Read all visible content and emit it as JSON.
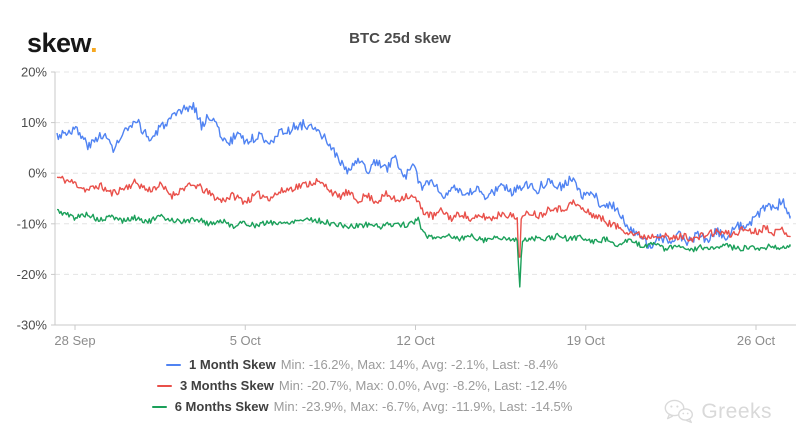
{
  "logo": {
    "text": "skew",
    "dot": ".",
    "dot_color": "#f6a821"
  },
  "title": "BTC 25d skew",
  "watermark": {
    "text": "Greeks",
    "icon": "wechat-icon"
  },
  "chart_data": {
    "type": "line",
    "title": "BTC 25d skew",
    "grid": "horizontal-dashed",
    "legend_position": "bottom",
    "x_axis": {
      "ticks": [
        {
          "day": 0,
          "label": "28 Sep"
        },
        {
          "day": 7,
          "label": "5 Oct"
        },
        {
          "day": 14,
          "label": "12 Oct"
        },
        {
          "day": 21,
          "label": "19 Oct"
        },
        {
          "day": 28,
          "label": "26 Oct"
        }
      ],
      "data_range_days": [
        -0.74,
        29.4
      ]
    },
    "y_axis": {
      "unit": "%",
      "range": [
        -30,
        20
      ],
      "ticks": [
        {
          "value": 20,
          "label": "20%"
        },
        {
          "value": 10,
          "label": "10%"
        },
        {
          "value": 0,
          "label": "0%"
        },
        {
          "value": -10,
          "label": "-10%"
        },
        {
          "value": -20,
          "label": "-20%"
        },
        {
          "value": -30,
          "label": "-30%"
        }
      ]
    },
    "series": [
      {
        "name": "1 Month Skew",
        "color": "#5083f2",
        "stats": {
          "min": -16.2,
          "max": 14,
          "avg": -2.1,
          "last": -8.4
        },
        "legend_stats": "Min: -16.2%, Max: 14%, Avg: -2.1%, Last: -8.4%",
        "noise": 1.0,
        "seed": 3,
        "keypoints": [
          [
            -0.74,
            7.5
          ],
          [
            0,
            8.8
          ],
          [
            0.6,
            5.2
          ],
          [
            1.1,
            8
          ],
          [
            1.6,
            4.8
          ],
          [
            2.1,
            8.5
          ],
          [
            2.6,
            9.8
          ],
          [
            3.1,
            6.5
          ],
          [
            3.6,
            9.5
          ],
          [
            4.1,
            11
          ],
          [
            4.55,
            12.8
          ],
          [
            4.9,
            13.2
          ],
          [
            5.2,
            9.5
          ],
          [
            5.6,
            11.5
          ],
          [
            5.9,
            8.5
          ],
          [
            6.3,
            5.5
          ],
          [
            6.7,
            8.2
          ],
          [
            7.1,
            6
          ],
          [
            7.5,
            7.5
          ],
          [
            8,
            6.5
          ],
          [
            8.5,
            8
          ],
          [
            9,
            9
          ],
          [
            9.5,
            9.8
          ],
          [
            9.9,
            8.2
          ],
          [
            10.4,
            6.3
          ],
          [
            10.8,
            3
          ],
          [
            11.2,
            0
          ],
          [
            11.6,
            2.6
          ],
          [
            12,
            0.5
          ],
          [
            12.4,
            2.2
          ],
          [
            12.8,
            0.8
          ],
          [
            13.2,
            3.2
          ],
          [
            13.5,
            -0.8
          ],
          [
            13.9,
            1
          ],
          [
            14.3,
            -2.8
          ],
          [
            14.7,
            -1.2
          ],
          [
            15.1,
            -4.6
          ],
          [
            15.5,
            -2.4
          ],
          [
            16,
            -5
          ],
          [
            16.5,
            -3
          ],
          [
            17,
            -4.8
          ],
          [
            17.5,
            -2.2
          ],
          [
            18,
            -3.8
          ],
          [
            18.5,
            -1.8
          ],
          [
            19,
            -3.2
          ],
          [
            19.5,
            -1.2
          ],
          [
            20,
            -2.6
          ],
          [
            20.4,
            -1
          ],
          [
            20.9,
            -4.8
          ],
          [
            21.3,
            -3.8
          ],
          [
            21.7,
            -6.8
          ],
          [
            22.1,
            -6
          ],
          [
            22.5,
            -9.2
          ],
          [
            22.9,
            -11
          ],
          [
            23.3,
            -12.8
          ],
          [
            23.7,
            -14.8
          ],
          [
            24,
            -12.5
          ],
          [
            24.4,
            -13.8
          ],
          [
            24.8,
            -12
          ],
          [
            25.2,
            -13.6
          ],
          [
            25.6,
            -12.2
          ],
          [
            26,
            -13.2
          ],
          [
            26.4,
            -11.6
          ],
          [
            26.8,
            -12.4
          ],
          [
            27.2,
            -10.2
          ],
          [
            27.6,
            -11.2
          ],
          [
            28,
            -8.6
          ],
          [
            28.4,
            -6.2
          ],
          [
            28.8,
            -6.8
          ],
          [
            29.1,
            -5.4
          ],
          [
            29.4,
            -8.4
          ]
        ]
      },
      {
        "name": "3 Months Skew",
        "color": "#e9504a",
        "stats": {
          "min": -20.7,
          "max": 0.0,
          "avg": -8.2,
          "last": -12.4
        },
        "legend_stats": "Min: -20.7%, Max: 0.0%, Avg: -8.2%, Last: -12.4%",
        "noise": 0.75,
        "seed": 11,
        "keypoints": [
          [
            -0.74,
            -0.8
          ],
          [
            0,
            -2
          ],
          [
            0.5,
            -3.4
          ],
          [
            1,
            -2.4
          ],
          [
            1.5,
            -4
          ],
          [
            2,
            -3
          ],
          [
            2.5,
            -1.8
          ],
          [
            3,
            -3.4
          ],
          [
            3.5,
            -2.4
          ],
          [
            4,
            -4.4
          ],
          [
            4.5,
            -2.8
          ],
          [
            5,
            -2.4
          ],
          [
            5.5,
            -4
          ],
          [
            6,
            -5.4
          ],
          [
            6.5,
            -4.4
          ],
          [
            7,
            -5.6
          ],
          [
            7.5,
            -4.2
          ],
          [
            8,
            -4.8
          ],
          [
            8.5,
            -3.6
          ],
          [
            9,
            -2.8
          ],
          [
            9.5,
            -2.2
          ],
          [
            9.9,
            -1.6
          ],
          [
            10.4,
            -2.8
          ],
          [
            10.8,
            -4.8
          ],
          [
            11.2,
            -3.8
          ],
          [
            11.6,
            -5.4
          ],
          [
            12,
            -4.4
          ],
          [
            12.4,
            -5.6
          ],
          [
            12.8,
            -4.2
          ],
          [
            13.2,
            -5.4
          ],
          [
            13.6,
            -4.4
          ],
          [
            14,
            -5
          ],
          [
            14.3,
            -7.4
          ],
          [
            14.7,
            -8.6
          ],
          [
            15.1,
            -7.4
          ],
          [
            15.5,
            -9
          ],
          [
            15.9,
            -7.8
          ],
          [
            16.3,
            -9.4
          ],
          [
            16.7,
            -8.4
          ],
          [
            17.1,
            -9
          ],
          [
            17.6,
            -7.8
          ],
          [
            18,
            -8.6
          ],
          [
            18.2,
            -9
          ],
          [
            18.26,
            -20.7
          ],
          [
            18.34,
            -9.2
          ],
          [
            18.7,
            -7.6
          ],
          [
            19.1,
            -8.4
          ],
          [
            19.6,
            -6.6
          ],
          [
            20,
            -7.2
          ],
          [
            20.5,
            -5.8
          ],
          [
            21,
            -7.6
          ],
          [
            21.5,
            -8.6
          ],
          [
            22,
            -10
          ],
          [
            22.5,
            -11
          ],
          [
            23,
            -12
          ],
          [
            23.5,
            -12.6
          ],
          [
            24,
            -12
          ],
          [
            24.5,
            -13
          ],
          [
            25,
            -12.4
          ],
          [
            25.5,
            -13
          ],
          [
            26,
            -12
          ],
          [
            26.5,
            -11.6
          ],
          [
            27,
            -12.2
          ],
          [
            27.5,
            -11
          ],
          [
            28,
            -11.6
          ],
          [
            28.4,
            -10.6
          ],
          [
            28.8,
            -11.8
          ],
          [
            29.1,
            -11
          ],
          [
            29.4,
            -12.4
          ]
        ]
      },
      {
        "name": "6 Months Skew",
        "color": "#1ba05a",
        "stats": {
          "min": -23.9,
          "max": -6.7,
          "avg": -11.9,
          "last": -14.5
        },
        "legend_stats": "Min: -23.9%, Max: -6.7%, Avg: -11.9%, Last: -14.5%",
        "noise": 0.55,
        "seed": 5,
        "keypoints": [
          [
            -0.74,
            -7.4
          ],
          [
            0,
            -8.8
          ],
          [
            0.5,
            -8
          ],
          [
            1,
            -9.4
          ],
          [
            1.5,
            -8.6
          ],
          [
            2,
            -9.4
          ],
          [
            2.5,
            -8.8
          ],
          [
            3,
            -9.6
          ],
          [
            3.5,
            -8.6
          ],
          [
            4,
            -9.2
          ],
          [
            4.5,
            -9.6
          ],
          [
            5,
            -9
          ],
          [
            5.5,
            -10
          ],
          [
            6,
            -9.4
          ],
          [
            6.5,
            -10.4
          ],
          [
            7,
            -9.8
          ],
          [
            7.5,
            -10.4
          ],
          [
            8,
            -9.6
          ],
          [
            8.5,
            -10
          ],
          [
            9,
            -9.4
          ],
          [
            9.6,
            -9
          ],
          [
            10.2,
            -9.6
          ],
          [
            10.8,
            -10.2
          ],
          [
            11.4,
            -10.6
          ],
          [
            12,
            -10.1
          ],
          [
            12.6,
            -10.5
          ],
          [
            13.2,
            -9.9
          ],
          [
            13.7,
            -10.4
          ],
          [
            14.1,
            -9
          ],
          [
            14.35,
            -12.2
          ],
          [
            14.8,
            -12.8
          ],
          [
            15.3,
            -12.2
          ],
          [
            15.8,
            -13
          ],
          [
            16.3,
            -12.4
          ],
          [
            16.8,
            -13.2
          ],
          [
            17.3,
            -12.6
          ],
          [
            17.8,
            -13.2
          ],
          [
            18.2,
            -12.8
          ],
          [
            18.28,
            -23.9
          ],
          [
            18.38,
            -13.4
          ],
          [
            18.8,
            -12.8
          ],
          [
            19.3,
            -13.2
          ],
          [
            19.8,
            -12.4
          ],
          [
            20.3,
            -13
          ],
          [
            20.8,
            -12.6
          ],
          [
            21.3,
            -13.6
          ],
          [
            21.8,
            -13
          ],
          [
            22.3,
            -14
          ],
          [
            22.8,
            -13.4
          ],
          [
            23.3,
            -14.4
          ],
          [
            23.8,
            -13.8
          ],
          [
            24.3,
            -15
          ],
          [
            24.8,
            -14.4
          ],
          [
            25.3,
            -15.2
          ],
          [
            25.8,
            -14.6
          ],
          [
            26.3,
            -15
          ],
          [
            26.8,
            -14.4
          ],
          [
            27.3,
            -15
          ],
          [
            27.8,
            -14.4
          ],
          [
            28.2,
            -15
          ],
          [
            28.6,
            -14.2
          ],
          [
            29,
            -14.8
          ],
          [
            29.4,
            -14.5
          ]
        ]
      }
    ]
  }
}
